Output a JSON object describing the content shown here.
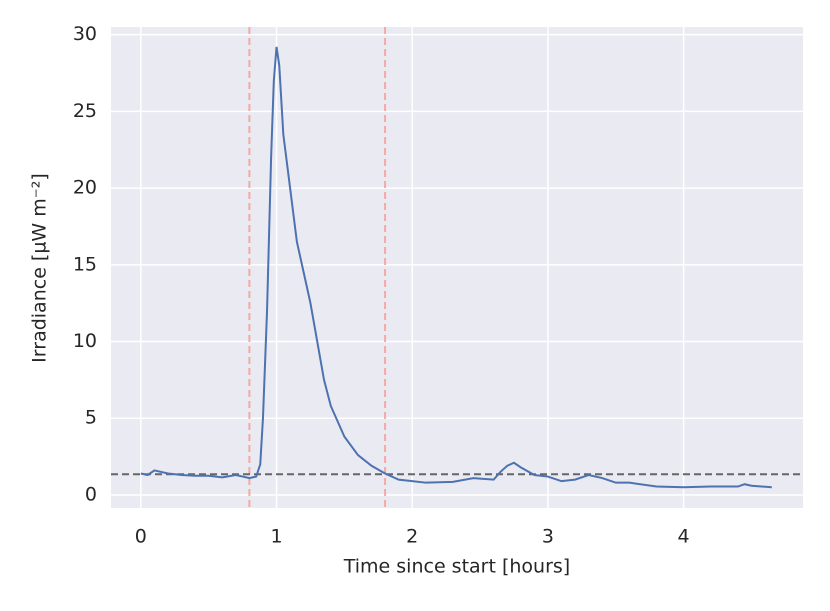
{
  "chart_data": {
    "type": "line",
    "x_label": "Time since start [hours]",
    "y_label": "Irradiance [µW m⁻²]",
    "x": [
      0,
      0.05,
      0.1,
      0.15,
      0.2,
      0.3,
      0.4,
      0.5,
      0.6,
      0.7,
      0.75,
      0.8,
      0.85,
      0.88,
      0.9,
      0.93,
      0.96,
      0.98,
      1.0,
      1.02,
      1.05,
      1.1,
      1.15,
      1.2,
      1.25,
      1.3,
      1.35,
      1.4,
      1.5,
      1.6,
      1.7,
      1.8,
      1.9,
      2.0,
      2.1,
      2.3,
      2.45,
      2.6,
      2.65,
      2.7,
      2.75,
      2.8,
      2.9,
      3.0,
      3.1,
      3.2,
      3.3,
      3.4,
      3.5,
      3.6,
      3.8,
      4.0,
      4.2,
      4.4,
      4.45,
      4.5,
      4.65
    ],
    "series": [
      {
        "color": "#4c72b0",
        "values": [
          1.4,
          1.3,
          1.6,
          1.5,
          1.4,
          1.3,
          1.25,
          1.25,
          1.15,
          1.3,
          1.2,
          1.1,
          1.2,
          2.0,
          5,
          12,
          22,
          27,
          29.2,
          28,
          23.5,
          20,
          16.5,
          14.5,
          12.5,
          10,
          7.5,
          5.8,
          3.8,
          2.6,
          1.9,
          1.4,
          1.0,
          0.9,
          0.8,
          0.85,
          1.1,
          1.0,
          1.5,
          1.9,
          2.1,
          1.8,
          1.3,
          1.2,
          0.9,
          1.0,
          1.3,
          1.1,
          0.8,
          0.8,
          0.55,
          0.5,
          0.55,
          0.55,
          0.7,
          0.6,
          0.5
        ]
      }
    ],
    "hlines": [
      {
        "y": 1.35,
        "color": "#666666"
      }
    ],
    "vlines": [
      {
        "x": 0.8,
        "color": "#f4a9a3"
      },
      {
        "x": 1.8,
        "color": "#f4a9a3"
      }
    ],
    "xlim": [
      -0.22,
      4.88
    ],
    "ylim": [
      -0.85,
      30.5
    ],
    "xticks": [
      0,
      1,
      2,
      3,
      4
    ],
    "yticks": [
      0,
      5,
      10,
      15,
      20,
      25,
      30
    ],
    "grid": true
  }
}
